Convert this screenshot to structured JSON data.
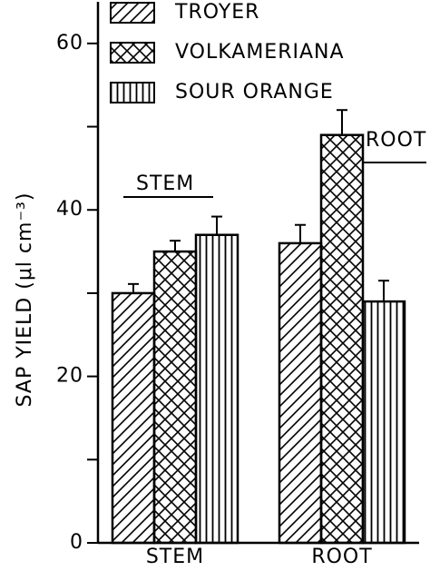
{
  "chart_data": {
    "type": "bar",
    "y_label": "SAP YIELD (μl cm⁻³)",
    "categories": [
      "STEM",
      "ROOT"
    ],
    "series": [
      {
        "name": "TROYER",
        "color": "#000000",
        "pattern": "diagonal",
        "values": [
          30,
          36
        ],
        "errors": [
          1.1,
          2.2
        ]
      },
      {
        "name": "VOLKAMERIANA",
        "color": "#000000",
        "pattern": "crosshatch",
        "values": [
          35,
          49
        ],
        "errors": [
          1.3,
          3
        ]
      },
      {
        "name": "SOUR ORANGE",
        "color": "#000000",
        "pattern": "vertical",
        "values": [
          37,
          29
        ],
        "errors": [
          2.2,
          2.5
        ]
      }
    ],
    "annotations": [
      "STEM",
      "ROOT"
    ],
    "ylim": [
      0,
      65
    ],
    "yticks": [
      0,
      20,
      40,
      60
    ],
    "minor_yticks": [
      10,
      30,
      50
    ],
    "legend": "top-left"
  }
}
